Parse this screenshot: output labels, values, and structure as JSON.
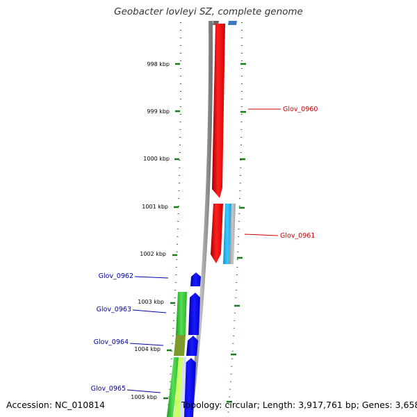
{
  "title": "Geobacter lovleyi SZ, complete genome",
  "footer": {
    "accession": "Accession: NC_010814",
    "topology": "Topology: circular; Length: 3,917,761 bp; Genes: 3,658"
  },
  "colors": {
    "tick": "#1a7a1a",
    "backbone": "#888888",
    "forward_gene": "#0000ff",
    "reverse_gene": "#ff0000",
    "forward_label": "#0000aa",
    "reverse_label": "#cc0000",
    "cyan_feature": "#1ab0f0",
    "green_feature": "#33cc33",
    "olive_feature": "#7a9a2a",
    "yellowgreen_feature": "#ccff66"
  },
  "ticks": [
    {
      "label": "998 kbp"
    },
    {
      "label": "999 kbp"
    },
    {
      "label": "1000 kbp"
    },
    {
      "label": "1001 kbp"
    },
    {
      "label": "1002 kbp"
    },
    {
      "label": "1003 kbp"
    },
    {
      "label": "1004 kbp"
    },
    {
      "label": "1005 kbp"
    }
  ],
  "gene_labels": [
    {
      "text": "Glov_0960",
      "strand": "reverse"
    },
    {
      "text": "Glov_0961",
      "strand": "reverse"
    },
    {
      "text": "Glov_0962",
      "strand": "forward"
    },
    {
      "text": "Glov_0963",
      "strand": "forward"
    },
    {
      "text": "Glov_0964",
      "strand": "forward"
    },
    {
      "text": "Glov_0965",
      "strand": "forward"
    }
  ]
}
